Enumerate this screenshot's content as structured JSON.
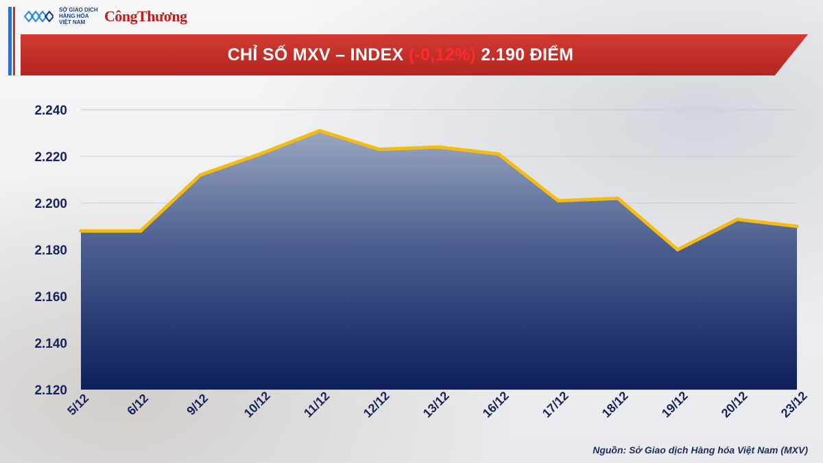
{
  "header": {
    "org_name": "SỞ GIAO DỊCH HÀNG HÓA VIỆT NAM",
    "publisher": "CôngThương",
    "title_prefix": "CHỈ SỐ MXV – INDEX ",
    "title_change": "(-0,12%)",
    "title_suffix": " 2.190 ĐIỂM"
  },
  "colors": {
    "banner": "#c62f28",
    "line": "#f5bb10",
    "area_top": "#9aa7c0",
    "area_bottom": "#0d1f5c",
    "axis_text": "#15235a",
    "negative": "#ff2a2a"
  },
  "chart_data": {
    "type": "area",
    "categories": [
      "5/12",
      "6/12",
      "9/12",
      "10/12",
      "11/12",
      "12/12",
      "13/12",
      "16/12",
      "17/12",
      "18/12",
      "19/12",
      "20/12",
      "23/12"
    ],
    "series": [
      {
        "values": [
          2188,
          2188,
          2212,
          2221,
          2231,
          2223,
          2224,
          2221,
          2201,
          2202,
          2180,
          2193,
          2190
        ]
      }
    ],
    "ylim": [
      2120,
      2240
    ],
    "yticks": [
      2120,
      2140,
      2160,
      2180,
      2200,
      2220,
      2240
    ],
    "ytick_labels": [
      "2.120",
      "2.140",
      "2.160",
      "2.180",
      "2.200",
      "2.220",
      "2.240"
    ],
    "grid": true
  },
  "source": "Nguồn: Sở Giao dịch Hàng hóa Việt Nam (MXV)"
}
